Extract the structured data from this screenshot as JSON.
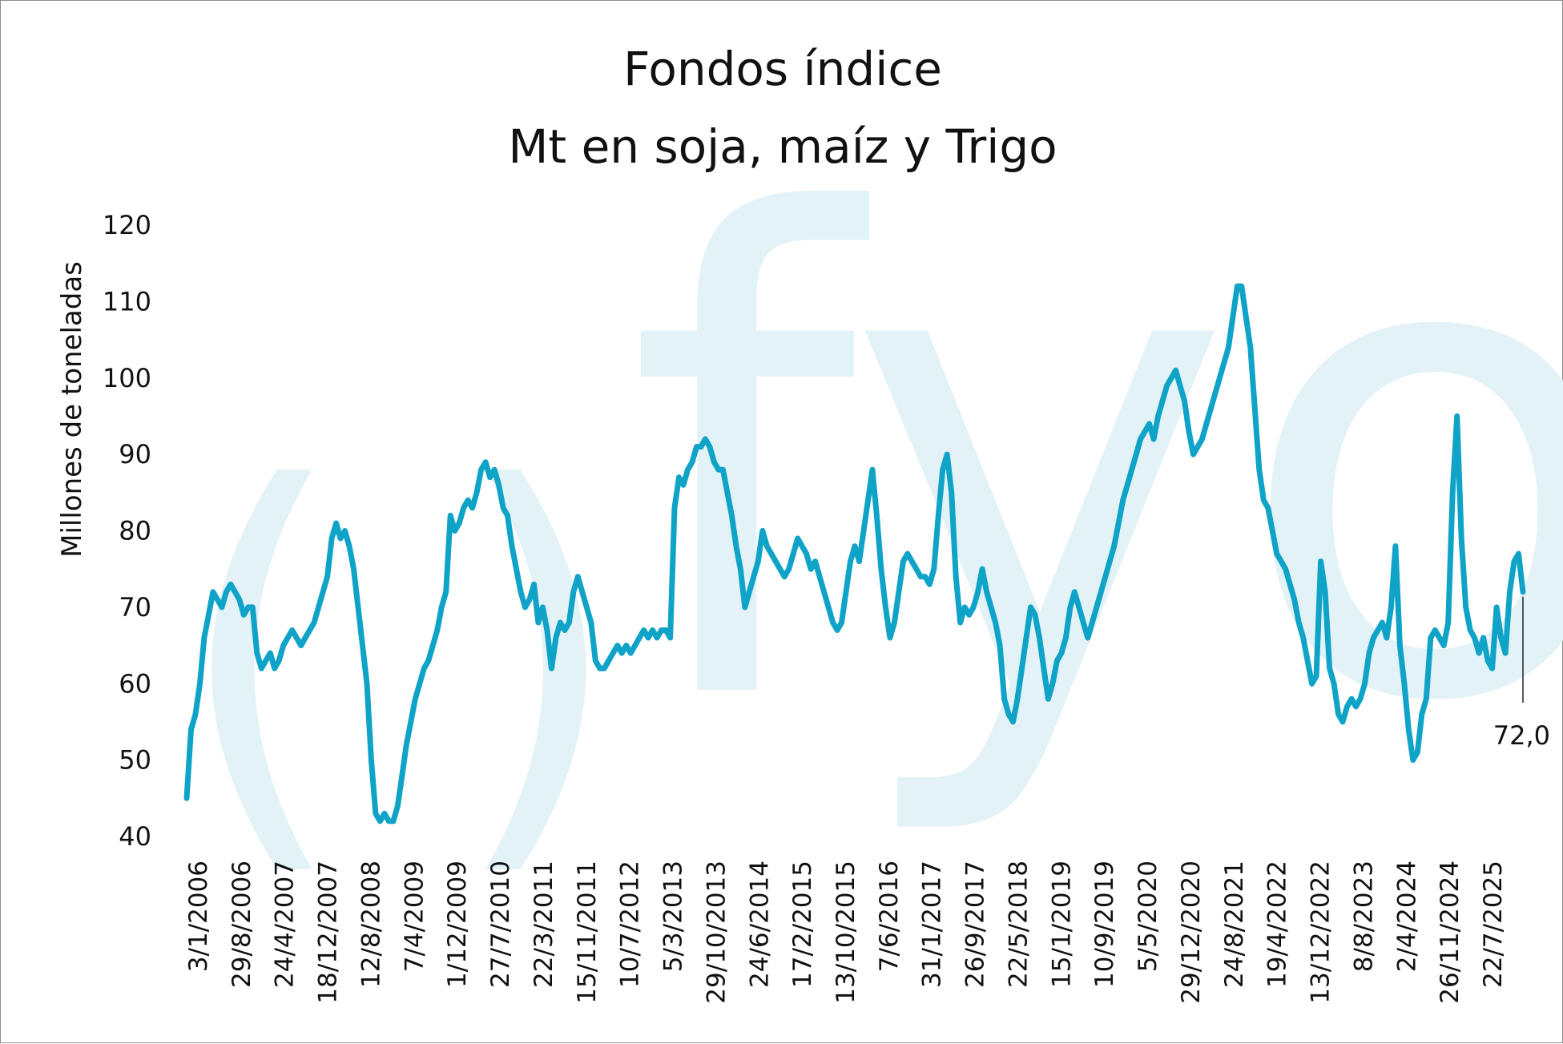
{
  "chart_data": {
    "type": "line",
    "title": "Fondos índice",
    "subtitle": "Mt en soja, maíz y Trigo",
    "xlabel": "",
    "ylabel": "Millones de toneladas",
    "ylim": [
      40,
      120
    ],
    "yticks": [
      "120",
      "110",
      "100",
      "90",
      "80",
      "70",
      "60",
      "50",
      "40"
    ],
    "xtick_labels": [
      "3/1/2006",
      "29/8/2006",
      "24/4/2007",
      "18/12/2007",
      "12/8/2008",
      "7/4/2009",
      "1/12/2009",
      "27/7/2010",
      "22/3/2011",
      "15/11/2011",
      "10/7/2012",
      "5/3/2013",
      "29/10/2013",
      "24/6/2014",
      "17/2/2015",
      "13/10/2015",
      "7/6/2016",
      "31/1/2017",
      "26/9/2017",
      "22/5/2018",
      "15/1/2019",
      "10/9/2019",
      "5/5/2020",
      "29/12/2020",
      "24/8/2021",
      "19/4/2022",
      "13/12/2022",
      "8/8/2023",
      "2/4/2024",
      "26/11/2024",
      "22/7/2025"
    ],
    "line_color": "#0fa3c7",
    "watermark": "fyo",
    "watermark_color": "#e3f2f6",
    "last_value_label": "72,0",
    "grid": false,
    "legend": "none",
    "series": [
      {
        "values": [
          45,
          54,
          56,
          60,
          66,
          69,
          72,
          71,
          70,
          72,
          73,
          72,
          71,
          69,
          70,
          70,
          64,
          62,
          63,
          64,
          62,
          63,
          65,
          66,
          67,
          66,
          65,
          66,
          67,
          68,
          70,
          72,
          74,
          79,
          81,
          79,
          80,
          78,
          75,
          70,
          65,
          60,
          50,
          43,
          42,
          43,
          42,
          42,
          44,
          48,
          52,
          55,
          58,
          60,
          62,
          63,
          65,
          67,
          70,
          72,
          82,
          80,
          81,
          83,
          84,
          83,
          85,
          88,
          89,
          87,
          88,
          86,
          83,
          82,
          78,
          75,
          72,
          70,
          71,
          73,
          68,
          70,
          67,
          62,
          66,
          68,
          67,
          68,
          72,
          74,
          72,
          70,
          68,
          63,
          62,
          62,
          63,
          64,
          65,
          64,
          65,
          64,
          65,
          66,
          67,
          66,
          67,
          66,
          67,
          67,
          66,
          83,
          87,
          86,
          88,
          89,
          91,
          91,
          92,
          91,
          89,
          88,
          88,
          85,
          82,
          78,
          75,
          70,
          72,
          74,
          76,
          80,
          78,
          77,
          76,
          75,
          74,
          75,
          77,
          79,
          78,
          77,
          75,
          76,
          74,
          72,
          70,
          68,
          67,
          68,
          72,
          76,
          78,
          76,
          80,
          84,
          88,
          82,
          75,
          70,
          66,
          68,
          72,
          76,
          77,
          76,
          75,
          74,
          74,
          73,
          75,
          82,
          88,
          90,
          85,
          74,
          68,
          70,
          69,
          70,
          72,
          75,
          72,
          70,
          68,
          65,
          58,
          56,
          55,
          58,
          62,
          66,
          70,
          69,
          66,
          62,
          58,
          60,
          63,
          64,
          66,
          70,
          72,
          70,
          68,
          66,
          68,
          70,
          72,
          74,
          76,
          78,
          81,
          84,
          86,
          88,
          90,
          92,
          93,
          94,
          92,
          95,
          97,
          99,
          100,
          101,
          99,
          97,
          93,
          90,
          91,
          92,
          94,
          96,
          98,
          100,
          102,
          104,
          108,
          112,
          112,
          108,
          104,
          96,
          88,
          84,
          83,
          80,
          77,
          76,
          75,
          73,
          71,
          68,
          66,
          63,
          60,
          61,
          76,
          72,
          62,
          60,
          56,
          55,
          57,
          58,
          57,
          58,
          60,
          64,
          66,
          67,
          68,
          66,
          70,
          78,
          65,
          60,
          54,
          50,
          51,
          56,
          58,
          66,
          67,
          66,
          65,
          68,
          85,
          95,
          79,
          70,
          67,
          66,
          64,
          66,
          63,
          62,
          70,
          66,
          64,
          72,
          76,
          77,
          72
        ]
      }
    ]
  }
}
